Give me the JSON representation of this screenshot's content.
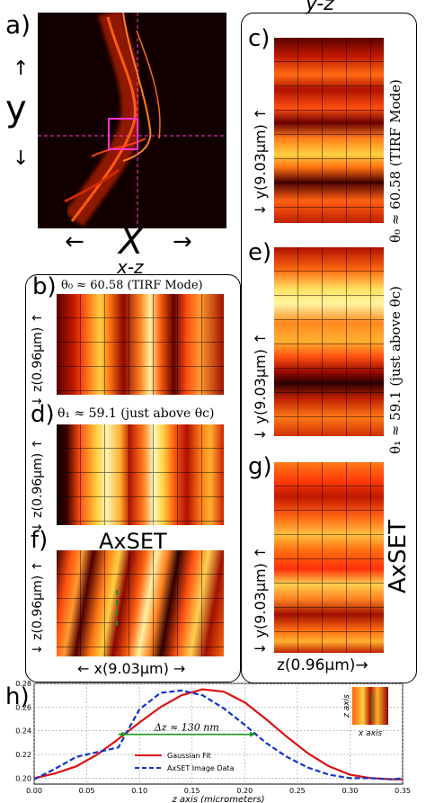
{
  "panels": {
    "a": {
      "letter": "a)",
      "y_label": "y",
      "x_label": "X",
      "arrow_up": "↑",
      "arrow_down": "↓",
      "arrow_left": "←",
      "arrow_right": "→"
    },
    "yz_title": "y-z",
    "xz_title": "x-z",
    "b": {
      "letter": "b)",
      "caption": "θ₀ ≈ 60.58 (TIRF Mode)",
      "ylabel": "↓ z(0.96μm) ↑"
    },
    "c": {
      "letter": "c)",
      "side_caption": "θ₀ ≈ 60.58 (TIRF Mode)",
      "ylabel": "↓ y(9.03μm) ↑"
    },
    "d": {
      "letter": "d)",
      "caption": "θ₁ ≈ 59.1 (just above θc)",
      "ylabel": "↓ z(0.96μm) ↑"
    },
    "e": {
      "letter": "e)",
      "side_caption": "θ₁ ≈ 59.1 (just above θc)",
      "ylabel": "↓ y(9.03μm) ↑"
    },
    "f": {
      "letter": "f)",
      "caption": "AxSET",
      "ylabel": "↓ z(0.96μm) ↑",
      "xlabel": "← x(9.03μm) →"
    },
    "g": {
      "letter": "g)",
      "side_caption": "AxSET",
      "ylabel": "↓ y(9.03μm) ↑",
      "xlabel": "z(0.96μm)→"
    },
    "h": {
      "letter": "h)"
    }
  },
  "chart_data": {
    "type": "line",
    "xlabel": "z axis (micrometers)",
    "ylabel": "",
    "xlim": [
      0.0,
      0.35
    ],
    "ylim": [
      0.195,
      0.28
    ],
    "x_ticks": [
      "0.00",
      "0.05",
      "0.10",
      "0.15",
      "0.20",
      "0.25",
      "0.30",
      "0.35"
    ],
    "y_ticks": [
      "0.20",
      "0.22",
      "0.24",
      "0.26",
      "0.28"
    ],
    "annotation": "Δz ≈ 130 nm",
    "annotation_span": [
      0.08,
      0.21
    ],
    "annotation_y": 0.237,
    "grid": true,
    "legend_position": "bottom-center",
    "inset": {
      "y_label": "z axis",
      "x_label": "x axis"
    },
    "series": [
      {
        "name": "Gaussian Fit",
        "color": "#dd1111",
        "style": "solid",
        "x": [
          0.0,
          0.02,
          0.04,
          0.06,
          0.08,
          0.1,
          0.12,
          0.14,
          0.16,
          0.18,
          0.2,
          0.22,
          0.24,
          0.26,
          0.28,
          0.3,
          0.32,
          0.34,
          0.35
        ],
        "y": [
          0.2,
          0.204,
          0.21,
          0.22,
          0.233,
          0.247,
          0.26,
          0.27,
          0.275,
          0.273,
          0.264,
          0.25,
          0.235,
          0.221,
          0.21,
          0.203,
          0.2,
          0.199,
          0.199
        ]
      },
      {
        "name": "AxSET Image Data",
        "color": "#1133cc",
        "style": "dashed",
        "x": [
          0.0,
          0.02,
          0.04,
          0.06,
          0.08,
          0.1,
          0.12,
          0.14,
          0.16,
          0.18,
          0.2,
          0.22,
          0.24,
          0.26,
          0.28,
          0.3,
          0.32,
          0.34,
          0.35
        ],
        "y": [
          0.199,
          0.208,
          0.218,
          0.222,
          0.226,
          0.258,
          0.272,
          0.274,
          0.27,
          0.259,
          0.245,
          0.23,
          0.218,
          0.209,
          0.203,
          0.2,
          0.2,
          0.199,
          0.2
        ]
      }
    ]
  }
}
